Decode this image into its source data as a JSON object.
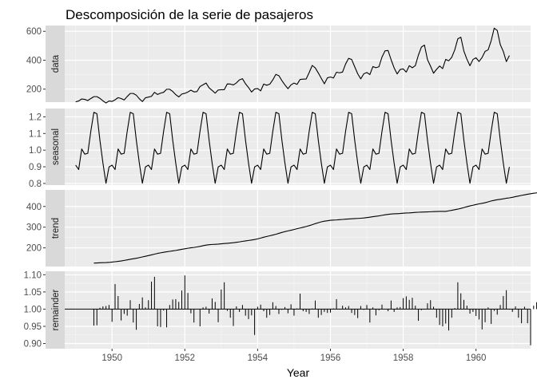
{
  "chart_data": {
    "type": "line",
    "title": "Descomposición de la serie de pasajeros",
    "xlabel": "Year",
    "xlim": [
      1948.7,
      1961.5
    ],
    "x_ticks": [
      1950,
      1952,
      1954,
      1956,
      1958,
      1960
    ],
    "x_tick_labels": [
      "1950",
      "1952",
      "1954",
      "1956",
      "1958",
      "1960"
    ],
    "grid": true,
    "background": "#ebebeb",
    "strip_color": "#d9d9d9",
    "line_color": "#000000",
    "x_start": 1949.0,
    "x_step": 0.0833333,
    "panels": [
      {
        "name": "data",
        "ylim": [
          110,
          640
        ],
        "y_ticks": [
          200,
          400,
          600
        ],
        "y_tick_labels": [
          "200",
          "400",
          "600"
        ],
        "geom": "line",
        "values": [
          112,
          118,
          132,
          129,
          121,
          135,
          148,
          148,
          136,
          119,
          104,
          118,
          115,
          126,
          141,
          135,
          125,
          149,
          170,
          170,
          158,
          133,
          114,
          140,
          145,
          150,
          178,
          163,
          172,
          178,
          199,
          199,
          184,
          162,
          146,
          166,
          171,
          180,
          193,
          181,
          183,
          218,
          230,
          242,
          209,
          191,
          172,
          194,
          196,
          196,
          236,
          235,
          229,
          243,
          264,
          272,
          237,
          211,
          180,
          201,
          204,
          188,
          235,
          227,
          234,
          264,
          302,
          293,
          259,
          229,
          203,
          229,
          242,
          233,
          267,
          269,
          270,
          315,
          364,
          347,
          312,
          274,
          237,
          278,
          284,
          277,
          317,
          313,
          318,
          374,
          413,
          405,
          355,
          306,
          271,
          306,
          315,
          301,
          356,
          348,
          355,
          422,
          465,
          467,
          404,
          347,
          305,
          336,
          340,
          318,
          362,
          348,
          363,
          435,
          491,
          505,
          404,
          359,
          310,
          337,
          360,
          342,
          406,
          396,
          420,
          472,
          548,
          559,
          463,
          407,
          362,
          405,
          417,
          391,
          419,
          461,
          472,
          535,
          622,
          606,
          508,
          461,
          390,
          432
        ]
      },
      {
        "name": "seasonal",
        "ylim": [
          0.79,
          1.25
        ],
        "y_ticks": [
          0.8,
          0.9,
          1.0,
          1.1,
          1.2
        ],
        "y_tick_labels": [
          "0.8",
          "0.9",
          "1.0",
          "1.1",
          "1.2"
        ],
        "geom": "line",
        "values": [
          0.91,
          0.884,
          1.007,
          0.976,
          0.981,
          1.113,
          1.227,
          1.219,
          1.06,
          0.922,
          0.801,
          0.899,
          0.91,
          0.884,
          1.007,
          0.976,
          0.981,
          1.113,
          1.227,
          1.219,
          1.06,
          0.922,
          0.801,
          0.899,
          0.91,
          0.884,
          1.007,
          0.976,
          0.981,
          1.113,
          1.227,
          1.219,
          1.06,
          0.922,
          0.801,
          0.899,
          0.91,
          0.884,
          1.007,
          0.976,
          0.981,
          1.113,
          1.227,
          1.219,
          1.06,
          0.922,
          0.801,
          0.899,
          0.91,
          0.884,
          1.007,
          0.976,
          0.981,
          1.113,
          1.227,
          1.219,
          1.06,
          0.922,
          0.801,
          0.899,
          0.91,
          0.884,
          1.007,
          0.976,
          0.981,
          1.113,
          1.227,
          1.219,
          1.06,
          0.922,
          0.801,
          0.899,
          0.91,
          0.884,
          1.007,
          0.976,
          0.981,
          1.113,
          1.227,
          1.219,
          1.06,
          0.922,
          0.801,
          0.899,
          0.91,
          0.884,
          1.007,
          0.976,
          0.981,
          1.113,
          1.227,
          1.219,
          1.06,
          0.922,
          0.801,
          0.899,
          0.91,
          0.884,
          1.007,
          0.976,
          0.981,
          1.113,
          1.227,
          1.219,
          1.06,
          0.922,
          0.801,
          0.899,
          0.91,
          0.884,
          1.007,
          0.976,
          0.981,
          1.113,
          1.227,
          1.219,
          1.06,
          0.922,
          0.801,
          0.899,
          0.91,
          0.884,
          1.007,
          0.976,
          0.981,
          1.113,
          1.227,
          1.219,
          1.06,
          0.922,
          0.801,
          0.899,
          0.91,
          0.884,
          1.007,
          0.976,
          0.981,
          1.113,
          1.227,
          1.219,
          1.06,
          0.922,
          0.801,
          0.899
        ]
      },
      {
        "name": "trend",
        "ylim": [
          110,
          480
        ],
        "y_ticks": [
          200,
          300,
          400
        ],
        "y_tick_labels": [
          "200",
          "300",
          "400"
        ],
        "geom": "line",
        "values": [
          null,
          null,
          null,
          null,
          null,
          null,
          126.8,
          127.2,
          127.9,
          128.6,
          129.0,
          129.8,
          131.3,
          133.1,
          134.8,
          136.8,
          139.4,
          142.2,
          144.8,
          147.3,
          149.8,
          152.9,
          156.3,
          159.4,
          162.7,
          166.2,
          169.8,
          173.2,
          176.0,
          178.6,
          181.1,
          183.2,
          185.3,
          187.6,
          190.3,
          193.0,
          195.6,
          198.2,
          200.2,
          202.0,
          204.4,
          207.1,
          210.5,
          213.4,
          215.2,
          216.5,
          217.2,
          218.2,
          219.7,
          221.0,
          222.1,
          223.5,
          225.0,
          226.9,
          229.0,
          231.5,
          233.7,
          235.7,
          237.8,
          240.2,
          243.5,
          247.4,
          251.3,
          254.9,
          258.4,
          262.0,
          265.7,
          270.1,
          274.5,
          278.5,
          281.9,
          285.0,
          288.8,
          292.5,
          296.0,
          299.5,
          303.1,
          307.3,
          312.0,
          317.0,
          321.6,
          325.8,
          329.0,
          331.0,
          333.3,
          334.2,
          335.0,
          336.3,
          337.4,
          338.6,
          339.5,
          340.5,
          341.4,
          342.2,
          343.2,
          344.5,
          346.3,
          348.3,
          350.6,
          352.6,
          354.4,
          357.1,
          359.7,
          361.7,
          363.7,
          364.6,
          365.2,
          366.0,
          367.4,
          368.4,
          369.0,
          370.0,
          371.2,
          372.1,
          372.8,
          373.3,
          373.8,
          374.5,
          375.2,
          375.8,
          376.3,
          376.3,
          376.3,
          378.8,
          381.6,
          384.3,
          387.1,
          390.6,
          394.7,
          398.8,
          402.7,
          405.9,
          409.4,
          412.6,
          415.1,
          418.1,
          422.3,
          426.5,
          429.5,
          432.6,
          434.6,
          436.9,
          439.6,
          441.5,
          444.1,
          447.6,
          450.4,
          453.5,
          456.3,
          459.2,
          461.6,
          463.8,
          465.6,
          467.3,
          468.7,
          470.2,
          null,
          null,
          null,
          null,
          null,
          null
        ]
      },
      {
        "name": "remainder",
        "ylim": [
          0.885,
          1.11
        ],
        "y_ticks": [
          0.9,
          0.95,
          1.0,
          1.05,
          1.1
        ],
        "y_tick_labels": [
          "0.90",
          "0.95",
          "1.00",
          "1.05",
          "1.10"
        ],
        "geom": "bar",
        "baseline": 1.0,
        "values": [
          null,
          null,
          null,
          null,
          null,
          null,
          0.952,
          0.953,
          1.004,
          1.008,
          1.009,
          1.012,
          0.963,
          1.073,
          1.038,
          0.967,
          0.986,
          0.981,
          1.026,
          0.961,
          0.94,
          1.015,
          1.034,
          1.005,
          1.026,
          1.08,
          1.094,
          0.95,
          0.948,
          0.996,
          0.947,
          1.012,
          1.028,
          1.029,
          1.021,
          1.054,
          1.098,
          1.047,
          0.988,
          0.961,
          1.001,
          0.95,
          1.005,
          1.007,
          0.987,
          1.031,
          1.021,
          0.962,
          1.057,
          1.078,
          0.995,
          0.975,
          0.951,
          1.008,
          0.992,
          1.012,
          0.981,
          0.971,
          0.982,
          0.925,
          1.007,
          1.013,
          0.994,
          0.975,
          0.983,
          1.02,
          1.009,
          0.986,
          0.998,
          1.006,
          0.988,
          1.014,
          0.981,
          1.002,
          1.045,
          0.994,
          0.992,
          0.986,
          1.002,
          1.025,
          0.975,
          0.983,
          0.992,
          0.989,
          0.99,
          1.002,
          1.029,
          0.999,
          1.01,
          1.005,
          1.009,
          0.989,
          0.983,
          0.974,
          1.009,
          0.998,
          1.012,
          0.961,
          1.005,
          0.982,
          0.997,
          1.013,
          1.001,
          0.994,
          1.025,
          0.992,
          1.005,
          1.006,
          1.032,
          1.037,
          1.027,
          1.033,
          1.01,
          0.966,
          0.997,
          0.999,
          1.017,
          1.026,
          1.007,
          0.975,
          0.954,
          0.95,
          0.958,
          0.938,
          0.975,
          1.003,
          1.078,
          1.046,
          1.027,
          1.01,
          0.987,
          0.992,
          0.98,
          0.97,
          0.941,
          0.962,
          1.005,
          0.957,
          0.995,
          0.984,
          1.012,
          1.038,
          1.055,
          0.999,
          0.992,
          1.008,
          0.975,
          0.959,
          1.007,
          0.959,
          0.895,
          1.01,
          1.02,
          0.994,
          1.014,
          1.018,
          null,
          null,
          null,
          null,
          null,
          null
        ]
      }
    ]
  }
}
